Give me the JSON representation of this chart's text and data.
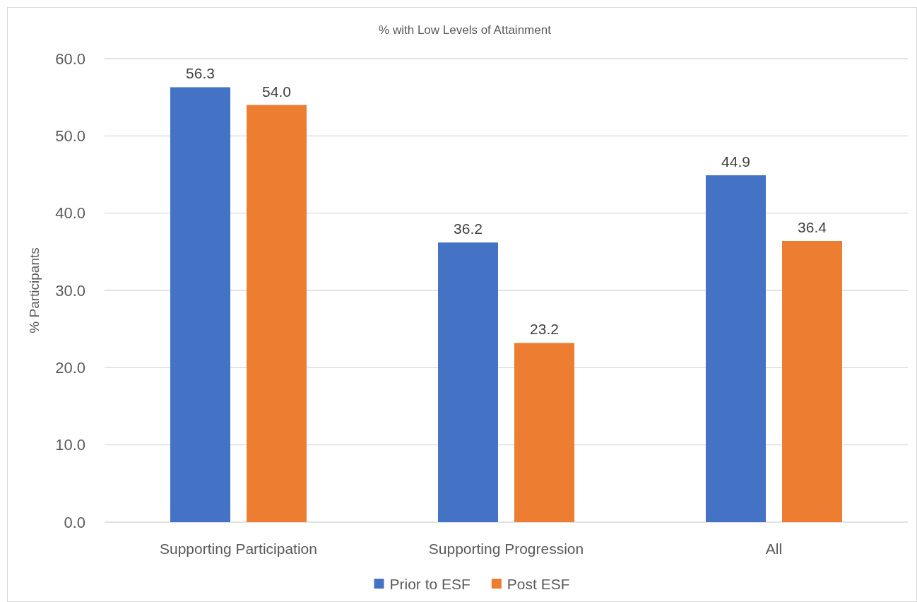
{
  "chart_data": {
    "type": "bar",
    "title": "% with Low Levels of Attainment",
    "ylabel": "% Participants",
    "categories": [
      "Supporting Participation",
      "Supporting Progression",
      "All"
    ],
    "series": [
      {
        "name": "Prior to ESF",
        "color": "#4472c4",
        "values": [
          56.3,
          36.2,
          44.9
        ],
        "value_labels": [
          "56.3",
          "36.2",
          "44.9"
        ]
      },
      {
        "name": "Post ESF",
        "color": "#ed7d31",
        "values": [
          54.0,
          23.2,
          36.4
        ],
        "value_labels": [
          "54.0",
          "23.2",
          "36.4"
        ]
      }
    ],
    "ylim": [
      0,
      60
    ],
    "yticks": [
      {
        "value": 0,
        "label": "0.0"
      },
      {
        "value": 10,
        "label": "10.0"
      },
      {
        "value": 20,
        "label": "20.0"
      },
      {
        "value": 30,
        "label": "30.0"
      },
      {
        "value": 40,
        "label": "40.0"
      },
      {
        "value": 50,
        "label": "50.0"
      },
      {
        "value": 60,
        "label": "60.0"
      }
    ],
    "grid": "y",
    "legend": "bottom"
  }
}
